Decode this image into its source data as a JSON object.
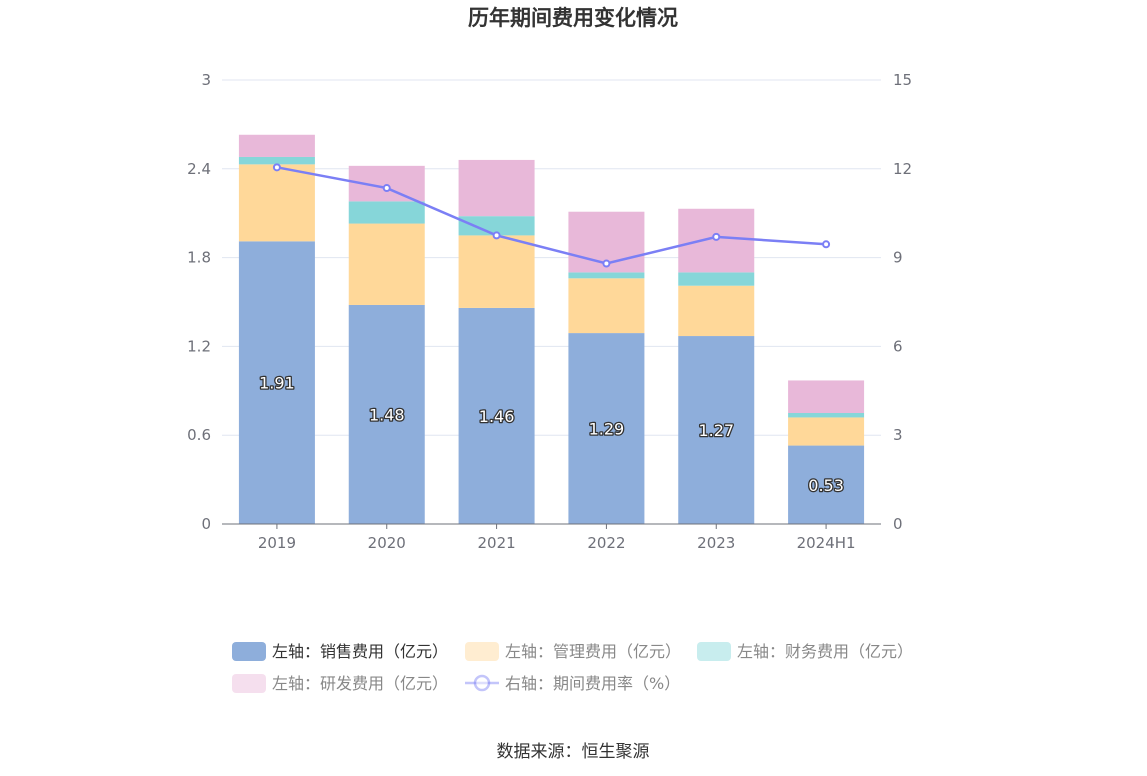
{
  "chart_data": {
    "type": "bar",
    "title": "历年期间费用变化情况",
    "categories": [
      "2019",
      "2020",
      "2021",
      "2022",
      "2023",
      "2024H1"
    ],
    "stacked": true,
    "y_left": {
      "min": 0,
      "max": 3,
      "ticks": [
        "0",
        "0.6",
        "1.2",
        "1.8",
        "2.4",
        "3"
      ]
    },
    "y_right": {
      "min": 0,
      "max": 15,
      "ticks": [
        "0",
        "3",
        "6",
        "9",
        "12",
        "15"
      ]
    },
    "series": [
      {
        "name": "左轴：销售费用（亿元）",
        "axis": "left",
        "color": "#8eaedb",
        "values": [
          1.91,
          1.48,
          1.46,
          1.29,
          1.27,
          0.53
        ],
        "labels": [
          "1.91",
          "1.48",
          "1.46",
          "1.29",
          "1.27",
          "0.53"
        ]
      },
      {
        "name": "左轴：管理费用（亿元）",
        "axis": "left",
        "color": "#ffd899",
        "values": [
          0.52,
          0.55,
          0.49,
          0.37,
          0.34,
          0.19
        ]
      },
      {
        "name": "左轴：财务费用（亿元）",
        "axis": "left",
        "color": "#86d6d9",
        "values": [
          0.05,
          0.15,
          0.13,
          0.04,
          0.09,
          0.03
        ]
      },
      {
        "name": "左轴：研发费用（亿元）",
        "axis": "left",
        "color": "#e8b8d9",
        "values": [
          0.15,
          0.24,
          0.38,
          0.41,
          0.43,
          0.22
        ]
      },
      {
        "name": "右轴：期间费用率（%）",
        "axis": "right",
        "type": "line",
        "color": "#7b7ff5",
        "values": [
          12.05,
          11.35,
          9.75,
          8.8,
          9.7,
          9.45
        ]
      }
    ],
    "legend": [
      {
        "label": "左轴：销售费用（亿元）",
        "dim": false
      },
      {
        "label": "左轴：管理费用（亿元）",
        "dim": true
      },
      {
        "label": "左轴：财务费用（亿元）",
        "dim": true
      },
      {
        "label": "左轴：研发费用（亿元）",
        "dim": true
      },
      {
        "label": "右轴：期间费用率（%）",
        "dim": true
      }
    ]
  },
  "source": "数据来源：恒生聚源"
}
